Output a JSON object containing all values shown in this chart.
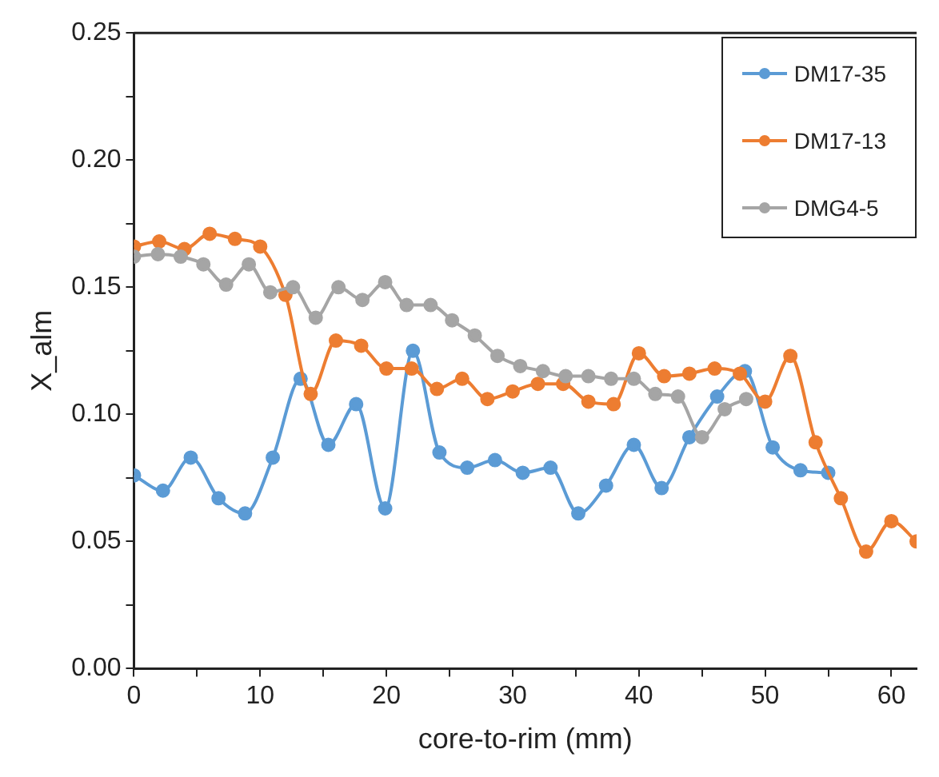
{
  "chart_data": {
    "type": "line",
    "xlabel": "core-to-rim (mm)",
    "ylabel": "X_alm",
    "xlim": [
      0,
      62
    ],
    "xticks": [
      0,
      {
        "value": 5,
        "label": null
      },
      10,
      {
        "value": 15,
        "label": null
      },
      20,
      {
        "value": 25,
        "label": null
      },
      30,
      {
        "value": 35,
        "label": null
      },
      40,
      {
        "value": 45,
        "label": null
      },
      50,
      {
        "value": 55,
        "label": null
      },
      60
    ],
    "ylim": [
      0,
      0.25
    ],
    "yticks": [
      {
        "value": 0,
        "label": "0.00"
      },
      {
        "value": 0.025,
        "label": null
      },
      {
        "value": 0.05,
        "label": "0.05"
      },
      {
        "value": 0.075,
        "label": null
      },
      {
        "value": 0.1,
        "label": "0.10"
      },
      {
        "value": 0.125,
        "label": null
      },
      {
        "value": 0.15,
        "label": "0.15"
      },
      {
        "value": 0.175,
        "label": null
      },
      {
        "value": 0.2,
        "label": "0.20"
      },
      {
        "value": 0.225,
        "label": null
      },
      {
        "value": 0.25,
        "label": "0.25"
      }
    ],
    "grid": false,
    "legend": "top right",
    "marker": "circle",
    "line_style": "solid",
    "series": [
      {
        "name": "DM17-35",
        "color": "#5b9bd5",
        "x": [
          0,
          2.3,
          4.5,
          6.7,
          8.8,
          11.0,
          13.2,
          15.4,
          17.6,
          19.9,
          22.1,
          24.2,
          26.4,
          28.6,
          30.8,
          33.0,
          35.2,
          37.4,
          39.6,
          41.8,
          44.0,
          46.2,
          48.4,
          50.6,
          52.8,
          55.0
        ],
        "values": [
          0.076,
          0.07,
          0.083,
          0.067,
          0.061,
          0.083,
          0.114,
          0.088,
          0.104,
          0.063,
          0.125,
          0.085,
          0.079,
          0.082,
          0.077,
          0.079,
          0.061,
          0.072,
          0.088,
          0.071,
          0.091,
          0.107,
          0.117,
          0.087,
          0.078,
          0.077
        ]
      },
      {
        "name": "DM17-13",
        "color": "#ed7d31",
        "x": [
          0,
          2,
          4,
          6,
          8,
          10,
          12,
          14,
          16,
          18,
          20,
          22,
          24,
          26,
          28,
          30,
          32,
          34,
          36,
          38,
          40,
          42,
          44,
          46,
          48,
          50,
          52,
          54,
          56,
          58,
          60,
          62
        ],
        "values": [
          0.166,
          0.168,
          0.165,
          0.171,
          0.169,
          0.166,
          0.147,
          0.108,
          0.129,
          0.127,
          0.118,
          0.118,
          0.11,
          0.114,
          0.106,
          0.109,
          0.112,
          0.112,
          0.105,
          0.104,
          0.124,
          0.115,
          0.116,
          0.118,
          0.116,
          0.105,
          0.123,
          0.089,
          0.067,
          0.046,
          0.058,
          0.05
        ]
      },
      {
        "name": "DMG4-5",
        "color": "#a5a5a5",
        "x": [
          0,
          1.9,
          3.7,
          5.5,
          7.3,
          9.1,
          10.8,
          12.6,
          14.4,
          16.2,
          18.1,
          19.9,
          21.6,
          23.5,
          25.2,
          27.0,
          28.8,
          30.6,
          32.4,
          34.2,
          36.0,
          37.8,
          39.6,
          41.3,
          43.1,
          45.0,
          46.8,
          48.5
        ],
        "values": [
          0.162,
          0.163,
          0.162,
          0.159,
          0.151,
          0.159,
          0.148,
          0.15,
          0.138,
          0.15,
          0.145,
          0.152,
          0.143,
          0.143,
          0.137,
          0.131,
          0.123,
          0.119,
          0.117,
          0.115,
          0.115,
          0.114,
          0.114,
          0.108,
          0.107,
          0.091,
          0.102,
          0.106
        ]
      }
    ]
  }
}
